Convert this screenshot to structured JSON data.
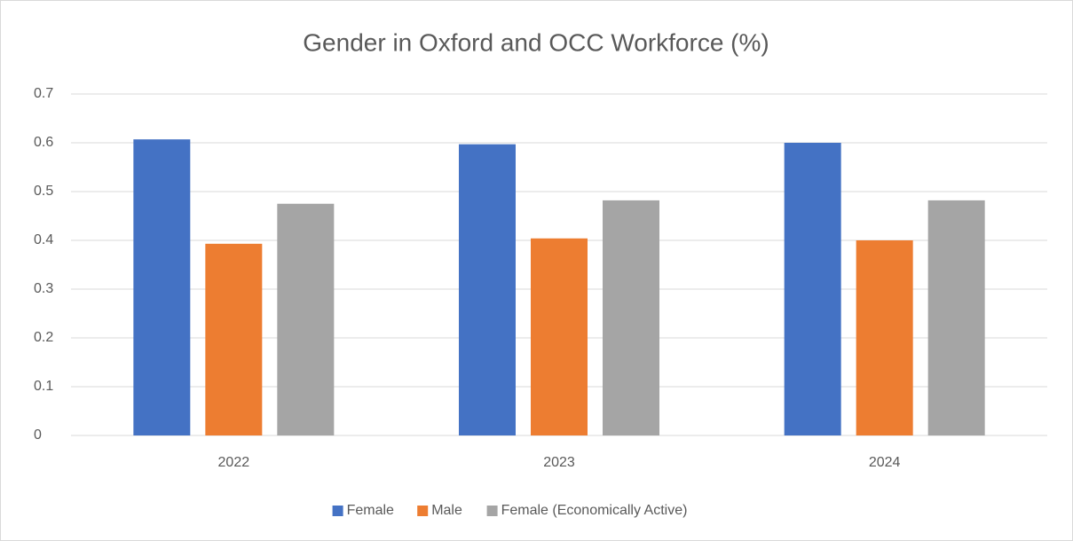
{
  "chart_data": {
    "type": "bar",
    "title": "Gender in Oxford and OCC Workforce (%)",
    "categories": [
      "2022",
      "2023",
      "2024"
    ],
    "series": [
      {
        "name": "Female",
        "color": "#4472c4",
        "values": [
          0.607,
          0.597,
          0.6
        ]
      },
      {
        "name": "Male",
        "color": "#ed7d31",
        "values": [
          0.393,
          0.404,
          0.4
        ]
      },
      {
        "name": "Female (Economically Active)",
        "color": "#a5a5a5",
        "values": [
          0.475,
          0.482,
          0.482
        ]
      }
    ],
    "ylim": [
      0,
      0.7
    ],
    "yticks": [
      0,
      0.1,
      0.2,
      0.3,
      0.4,
      0.5,
      0.6,
      0.7
    ],
    "grid": true,
    "legend": "bottom"
  }
}
